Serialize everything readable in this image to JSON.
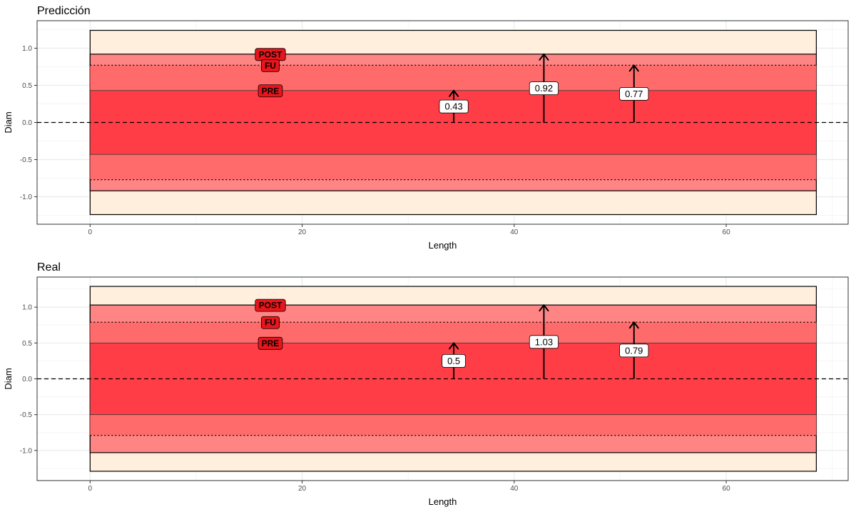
{
  "colors": {
    "outer_band": "#FFEFDC",
    "post_band": "#FF8585",
    "fu_band": "#FF6B6B",
    "pre_band": "#FF3D46",
    "label_fill": "#E8161C",
    "panel_border": "#333333",
    "grid_major": "#EBEBEB",
    "grid_minor": "#F5F5F5"
  },
  "chart_data": [
    {
      "type": "band",
      "title": "Predicción",
      "xlabel": "Length",
      "ylabel": "Diam",
      "xlim": [
        -5,
        71.5
      ],
      "ylim": [
        -1.37,
        1.37
      ],
      "xticks": [
        0,
        20,
        40,
        60
      ],
      "xtick_labels": [
        "0",
        "20",
        "40",
        "60"
      ],
      "yticks": [
        -1.0,
        -0.5,
        0.0,
        0.5,
        1.0
      ],
      "ytick_labels": [
        "-1.0",
        "-0.5",
        "0.0",
        "0.5",
        "1.0"
      ],
      "grid": true,
      "x_range": [
        0,
        68.5
      ],
      "outer_half_width": 1.24,
      "bands": [
        {
          "name": "POST",
          "half_width": 0.92
        },
        {
          "name": "FU",
          "half_width": 0.77
        },
        {
          "name": "PRE",
          "half_width": 0.43
        }
      ],
      "series_labels": [
        {
          "text": "POST",
          "x": 17,
          "y": 0.92
        },
        {
          "text": "FU",
          "x": 17,
          "y": 0.77
        },
        {
          "text": "PRE",
          "x": 17,
          "y": 0.43
        }
      ],
      "arrows": [
        {
          "x": 34.3,
          "value": 0.43,
          "label": "0.43"
        },
        {
          "x": 42.8,
          "value": 0.92,
          "label": "0.92"
        },
        {
          "x": 51.3,
          "value": 0.77,
          "label": "0.77"
        }
      ],
      "zero_line": 0
    },
    {
      "type": "band",
      "title": "Real",
      "xlabel": "Length",
      "ylabel": "Diam",
      "xlim": [
        -5,
        71.5
      ],
      "ylim": [
        -1.42,
        1.42
      ],
      "xticks": [
        0,
        20,
        40,
        60
      ],
      "xtick_labels": [
        "0",
        "20",
        "40",
        "60"
      ],
      "yticks": [
        -1.0,
        -0.5,
        0.0,
        0.5,
        1.0
      ],
      "ytick_labels": [
        "-1.0",
        "-0.5",
        "0.0",
        "0.5",
        "1.0"
      ],
      "grid": true,
      "x_range": [
        0,
        68.5
      ],
      "outer_half_width": 1.29,
      "bands": [
        {
          "name": "POST",
          "half_width": 1.03
        },
        {
          "name": "FU",
          "half_width": 0.79
        },
        {
          "name": "PRE",
          "half_width": 0.5
        }
      ],
      "series_labels": [
        {
          "text": "POST",
          "x": 17,
          "y": 1.03
        },
        {
          "text": "FU",
          "x": 17,
          "y": 0.79
        },
        {
          "text": "PRE",
          "x": 17,
          "y": 0.5
        }
      ],
      "arrows": [
        {
          "x": 34.3,
          "value": 0.5,
          "label": "0.5"
        },
        {
          "x": 42.8,
          "value": 1.03,
          "label": "1.03"
        },
        {
          "x": 51.3,
          "value": 0.79,
          "label": "0.79"
        }
      ],
      "zero_line": 0
    }
  ]
}
